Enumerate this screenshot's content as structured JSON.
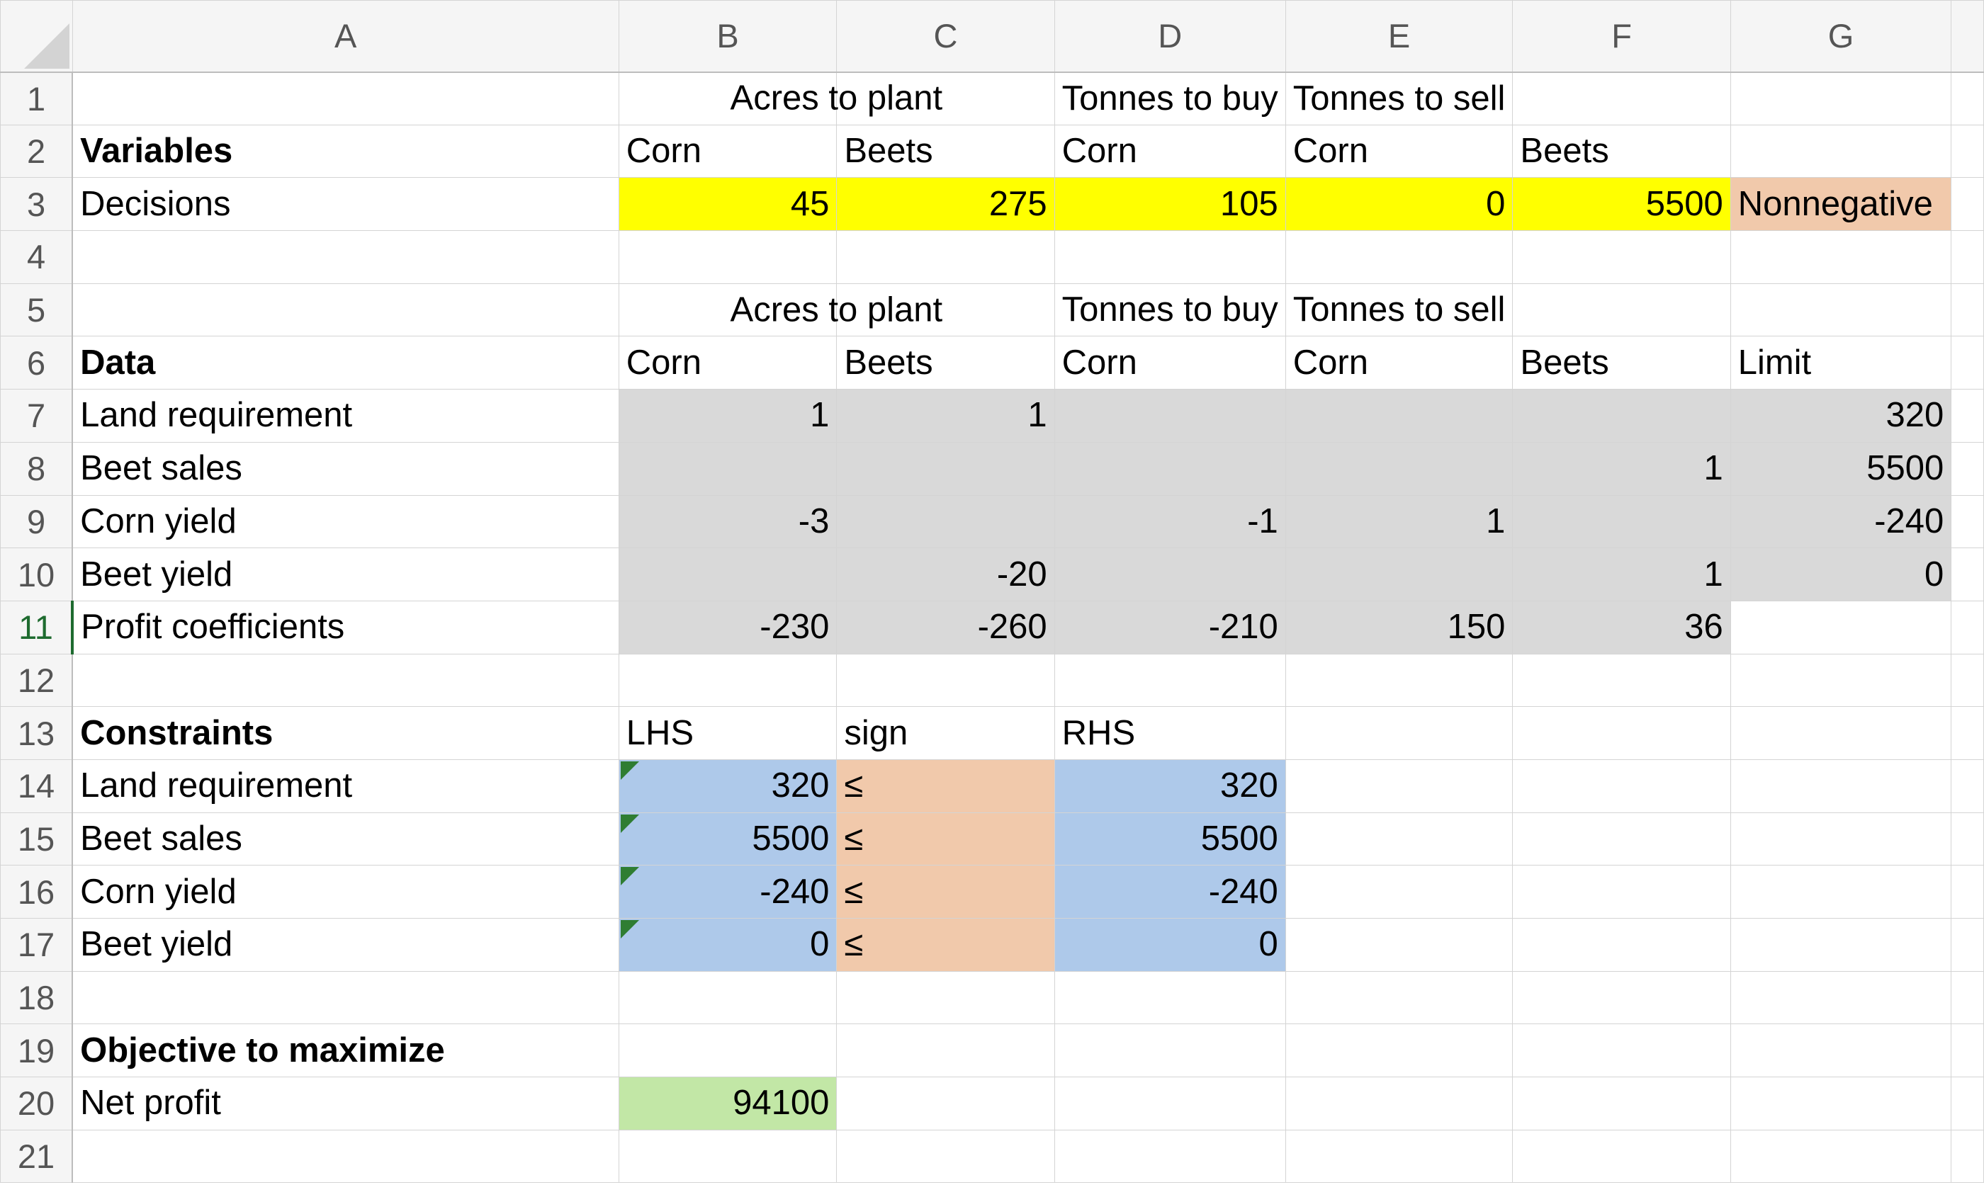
{
  "columns": [
    "A",
    "B",
    "C",
    "D",
    "E",
    "F",
    "G"
  ],
  "rows": [
    "1",
    "2",
    "3",
    "4",
    "5",
    "6",
    "7",
    "8",
    "9",
    "10",
    "11",
    "12",
    "13",
    "14",
    "15",
    "16",
    "17",
    "18",
    "19",
    "20",
    "21"
  ],
  "headers": {
    "acres_to_plant": "Acres to plant",
    "tonnes_to_buy": "Tonnes to buy",
    "tonnes_to_sell": "Tonnes to sell"
  },
  "variables": {
    "title": "Variables",
    "decisions_label": "Decisions",
    "labels": [
      "Corn",
      "Beets",
      "Corn",
      "Corn",
      "Beets"
    ],
    "values": [
      "45",
      "275",
      "105",
      "0",
      "5500"
    ],
    "constraint_note": "Nonnegative"
  },
  "data_section": {
    "title": "Data",
    "labels": [
      "Corn",
      "Beets",
      "Corn",
      "Corn",
      "Beets",
      "Limit"
    ],
    "rows": [
      {
        "name": "Land requirement",
        "cells": [
          "1",
          "1",
          "",
          "",
          "",
          "320"
        ]
      },
      {
        "name": "Beet sales",
        "cells": [
          "",
          "",
          "",
          "",
          "1",
          "5500"
        ]
      },
      {
        "name": "Corn yield",
        "cells": [
          "-3",
          "",
          "-1",
          "1",
          "",
          "-240"
        ]
      },
      {
        "name": "Beet yield",
        "cells": [
          "",
          "-20",
          "",
          "",
          "1",
          "0"
        ]
      },
      {
        "name": "Profit coefficients",
        "cells": [
          "-230",
          "-260",
          "-210",
          "150",
          "36",
          ""
        ]
      }
    ]
  },
  "constraints": {
    "title": "Constraints",
    "lhs_label": "LHS",
    "sign_label": "sign",
    "rhs_label": "RHS",
    "rows": [
      {
        "name": "Land requirement",
        "lhs": "320",
        "sign": "≤",
        "rhs": "320"
      },
      {
        "name": "Beet sales",
        "lhs": "5500",
        "sign": "≤",
        "rhs": "5500"
      },
      {
        "name": "Corn yield",
        "lhs": "-240",
        "sign": "≤",
        "rhs": "-240"
      },
      {
        "name": "Beet yield",
        "lhs": "0",
        "sign": "≤",
        "rhs": "0"
      }
    ]
  },
  "objective": {
    "title": "Objective to maximize",
    "label": "Net profit",
    "value": "94100"
  },
  "colors": {
    "decision_fill": "#ffff00",
    "nonnegative_fill": "#f1c9ab",
    "data_fill": "#d9d9d9",
    "lhs_rhs_fill": "#aec9ea",
    "sign_fill": "#f1c9ab",
    "objective_fill": "#c2e7a6",
    "active_row_header": "#1e6b2f",
    "formula_flag": "#2f7d32"
  },
  "active_row": "11"
}
